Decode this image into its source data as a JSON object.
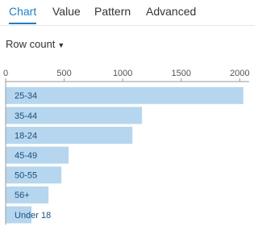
{
  "tabs": [
    "Chart",
    "Value",
    "Pattern",
    "Advanced"
  ],
  "dropdown": "Row count",
  "chart_data": {
    "type": "barh",
    "categories": [
      "25-34",
      "35-44",
      "18-24",
      "45-49",
      "50-55",
      "56+",
      "Under 18"
    ],
    "values": [
      2030,
      1165,
      1083,
      538,
      476,
      366,
      221
    ],
    "color": "#b5d6ee",
    "xlim": [
      0,
      2080
    ],
    "xticks": [
      0,
      500,
      1000,
      1500,
      2000
    ]
  }
}
